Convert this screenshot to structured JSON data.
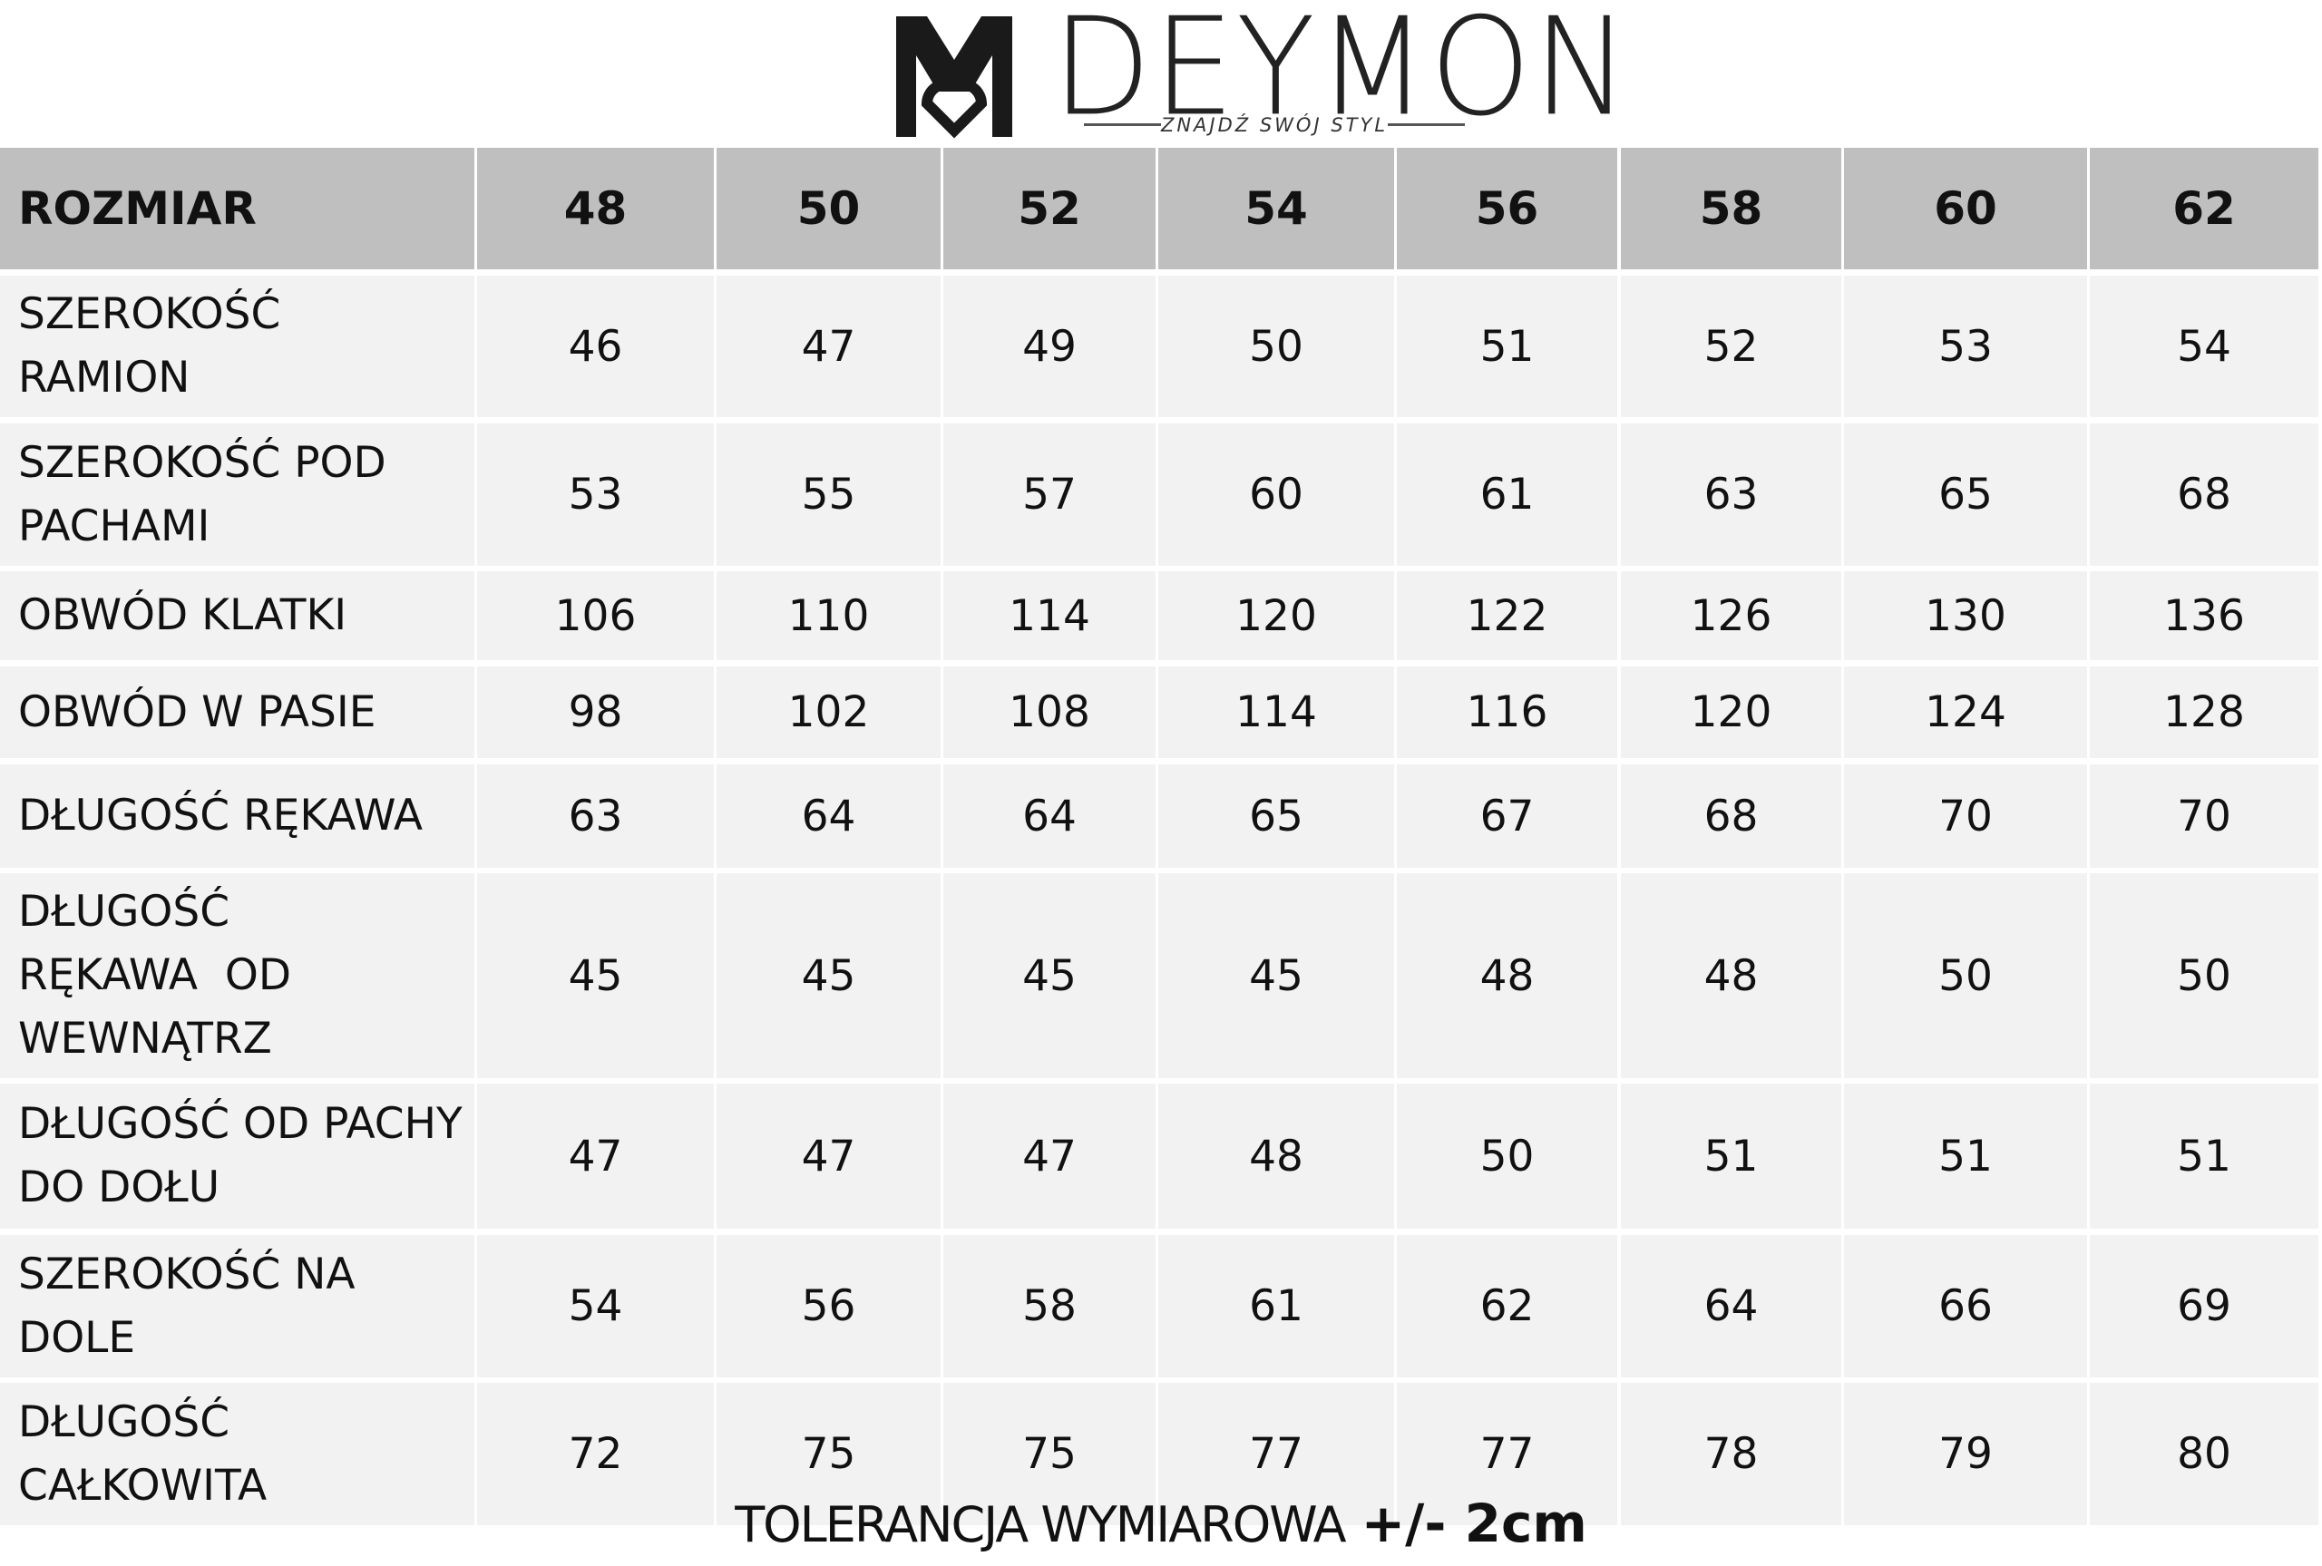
{
  "header": {
    "brand": "DEYMON",
    "tagline": "ZNAJDŹ SWÓJ STYL"
  },
  "table": {
    "columns": [
      "ROZMIAR",
      48,
      50,
      52,
      54,
      56,
      58,
      60,
      62
    ],
    "rows": [
      {
        "label": [
          "SZEROKOŚĆ",
          "RAMION"
        ],
        "values": [
          46,
          47,
          49,
          50,
          51,
          52,
          53,
          54
        ]
      },
      {
        "label": [
          "SZEROKOŚĆ POD",
          "PACHAMI"
        ],
        "values": [
          53,
          55,
          57,
          60,
          61,
          63,
          65,
          68
        ]
      },
      {
        "label": [
          "OBWÓD KLATKI"
        ],
        "values": [
          106,
          110,
          114,
          120,
          122,
          126,
          130,
          136
        ]
      },
      {
        "label": [
          "OBWÓD W PASIE"
        ],
        "values": [
          98,
          102,
          108,
          114,
          116,
          120,
          124,
          128
        ]
      },
      {
        "label": [
          "DŁUGOŚĆ RĘKAWA"
        ],
        "values": [
          63,
          64,
          64,
          65,
          67,
          68,
          70,
          70
        ]
      },
      {
        "label": [
          "DŁUGOŚĆ",
          "RĘKAWA  OD",
          "WEWNĄTRZ"
        ],
        "values": [
          45,
          45,
          45,
          45,
          48,
          48,
          50,
          50
        ]
      },
      {
        "label": [
          "DŁUGOŚĆ OD PACHY",
          "DO DOŁU"
        ],
        "values": [
          47,
          47,
          47,
          48,
          50,
          51,
          51,
          51
        ]
      },
      {
        "label": [
          "SZEROKOŚĆ NA",
          "DOLE"
        ],
        "values": [
          54,
          56,
          58,
          61,
          62,
          64,
          66,
          69
        ]
      },
      {
        "label": [
          "DŁUGOŚĆ",
          "CAŁKOWITA"
        ],
        "values": [
          72,
          75,
          75,
          77,
          77,
          78,
          79,
          80
        ]
      }
    ]
  },
  "footer": {
    "note": "TOLERANCJA WYMIAROWA",
    "tolerance": "+/- 2cm"
  }
}
